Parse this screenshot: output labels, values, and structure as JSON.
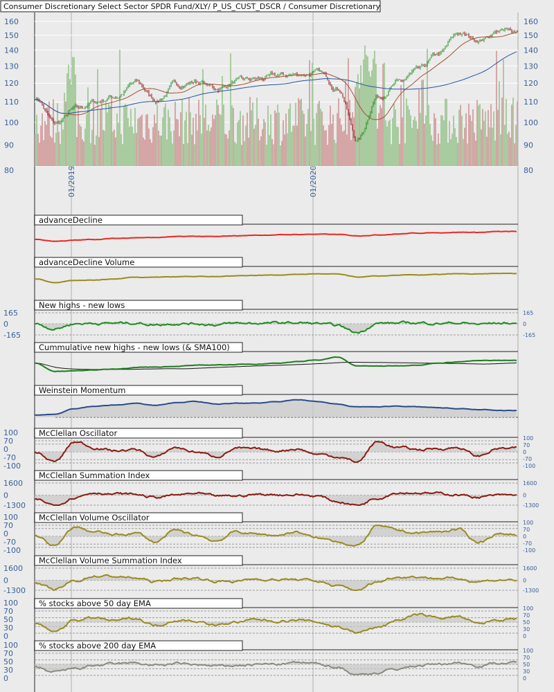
{
  "title": "Consumer Discretionary Select Sector SPDR Fund/XLY/ P_US_CUST_DSCR / Consumer Discretionary",
  "colors": {
    "up": "#1a8a1a",
    "down": "#8b1010",
    "volume_up": "#a8cba0",
    "volume_down": "#d4a6a6",
    "sma_short": "#a0522d",
    "sma_long": "#2455a4",
    "label": "#3a5f9a"
  },
  "chart_data": {
    "type": "line",
    "months": [
      "2018-11",
      "2018-12",
      "2019-01",
      "2019-02",
      "2019-03",
      "2019-04",
      "2019-05",
      "2019-06",
      "2019-07",
      "2019-08",
      "2019-09",
      "2019-10",
      "2019-11",
      "2019-12",
      "2020-01",
      "2020-02",
      "2020-03",
      "2020-04",
      "2020-05",
      "2020-06",
      "2020-07",
      "2020-08",
      "2020-09",
      "2020-10"
    ],
    "date_labels": [
      "01/2019",
      "01/2020"
    ],
    "price": {
      "scale": "log",
      "ylim": [
        80,
        165
      ],
      "ticks": [
        160,
        150,
        140,
        130,
        120,
        110,
        100,
        90,
        80
      ],
      "close": [
        112,
        99,
        106,
        110,
        113,
        120,
        111,
        119,
        121,
        117,
        121,
        122,
        124,
        125,
        126,
        118,
        92,
        113,
        120,
        127,
        137,
        151,
        147,
        153
      ],
      "overlays": [
        "SMA50",
        "SMA200"
      ]
    },
    "panels": [
      {
        "title": "advanceDecline",
        "color": "#e8281e",
        "ticks": [],
        "ylim": [
          0,
          1
        ],
        "values": [
          0.35,
          0.25,
          0.3,
          0.35,
          0.4,
          0.45,
          0.45,
          0.5,
          0.52,
          0.5,
          0.55,
          0.58,
          0.6,
          0.62,
          0.64,
          0.62,
          0.55,
          0.6,
          0.65,
          0.7,
          0.72,
          0.75,
          0.74,
          0.78
        ]
      },
      {
        "title": "advanceDecline Volume",
        "color": "#9a8a1e",
        "ticks": [],
        "ylim": [
          0,
          1
        ],
        "values": [
          0.5,
          0.3,
          0.4,
          0.45,
          0.5,
          0.6,
          0.6,
          0.62,
          0.65,
          0.62,
          0.68,
          0.7,
          0.72,
          0.75,
          0.78,
          0.76,
          0.6,
          0.65,
          0.7,
          0.72,
          0.74,
          0.78,
          0.76,
          0.8
        ]
      },
      {
        "title": "New highs - new lows",
        "color": "#1f8a1f",
        "ticks": [
          165,
          0,
          -165
        ],
        "ylim": [
          -165,
          165
        ],
        "values": [
          0,
          -70,
          5,
          10,
          10,
          15,
          -10,
          10,
          5,
          -10,
          5,
          10,
          10,
          15,
          5,
          -30,
          -130,
          10,
          10,
          15,
          10,
          15,
          -5,
          10
        ]
      },
      {
        "title": "Cummulative new highs - new lows (& SMA100)",
        "color": "#1f7a1f",
        "ticks": [],
        "ylim": [
          0,
          1
        ],
        "values": [
          0.55,
          0.1,
          0.12,
          0.18,
          0.22,
          0.3,
          0.33,
          0.38,
          0.42,
          0.45,
          0.47,
          0.5,
          0.55,
          0.62,
          0.72,
          0.88,
          0.4,
          0.38,
          0.4,
          0.45,
          0.55,
          0.62,
          0.68,
          0.7
        ]
      },
      {
        "title": "Weinstein Momentum",
        "color": "#2a4a8a",
        "ticks": [],
        "ylim": [
          0,
          1
        ],
        "values": [
          0.05,
          0.1,
          0.4,
          0.55,
          0.6,
          0.7,
          0.6,
          0.75,
          0.8,
          0.65,
          0.7,
          0.7,
          0.8,
          0.9,
          0.8,
          0.65,
          0.5,
          0.5,
          0.55,
          0.5,
          0.45,
          0.4,
          0.35,
          0.3
        ]
      },
      {
        "title": "McClellan Oscillator",
        "color": "#8b1a10",
        "ticks": [
          100,
          70,
          0,
          -70,
          -100
        ],
        "ylim": [
          -100,
          100
        ],
        "values": [
          0,
          -90,
          90,
          40,
          10,
          20,
          -50,
          40,
          0,
          -40,
          30,
          20,
          10,
          30,
          -20,
          -40,
          -90,
          90,
          40,
          20,
          30,
          40,
          -40,
          30
        ]
      },
      {
        "title": "McClellan Summation Index",
        "color": "#8b1a10",
        "ticks": [
          1600,
          0,
          -1300
        ],
        "ylim": [
          -1300,
          1600
        ],
        "values": [
          -500,
          -1300,
          -200,
          400,
          150,
          100,
          -300,
          0,
          200,
          -200,
          -100,
          100,
          100,
          100,
          -100,
          -800,
          -1300,
          -300,
          400,
          350,
          200,
          100,
          -250,
          -50
        ]
      },
      {
        "title": "McClellan Volume Oscillator",
        "color": "#9a8a1e",
        "ticks": [
          100,
          70,
          0,
          -70,
          -100
        ],
        "ylim": [
          -100,
          100
        ],
        "values": [
          10,
          -90,
          80,
          40,
          10,
          30,
          -50,
          50,
          10,
          -40,
          40,
          20,
          10,
          40,
          -20,
          -40,
          -90,
          95,
          50,
          30,
          40,
          60,
          -50,
          20
        ]
      },
      {
        "title": "McClellan Volume Summation Index",
        "color": "#9a8a1e",
        "ticks": [
          1600,
          0,
          -1300
        ],
        "ylim": [
          -1300,
          1600
        ],
        "values": [
          -400,
          -1300,
          -100,
          600,
          500,
          300,
          -200,
          200,
          300,
          -100,
          -100,
          200,
          100,
          100,
          -100,
          -800,
          -1300,
          -200,
          500,
          500,
          300,
          200,
          -100,
          50
        ]
      },
      {
        "title": "% stocks above 50 day EMA",
        "color": "#9a8a1e",
        "ticks": [
          100,
          70,
          50,
          30,
          0
        ],
        "ylim": [
          0,
          100
        ],
        "values": [
          40,
          5,
          60,
          68,
          55,
          68,
          35,
          60,
          55,
          35,
          50,
          60,
          55,
          60,
          50,
          30,
          4,
          25,
          60,
          82,
          70,
          75,
          40,
          62
        ]
      },
      {
        "title": "% stocks above 200 day EMA",
        "color": "#8a8a80",
        "ticks": [
          100,
          70,
          50,
          30,
          0
        ],
        "ylim": [
          0,
          100
        ],
        "values": [
          35,
          12,
          30,
          45,
          50,
          55,
          45,
          52,
          48,
          40,
          45,
          50,
          50,
          56,
          52,
          40,
          3,
          12,
          30,
          45,
          50,
          58,
          45,
          56
        ]
      }
    ]
  }
}
